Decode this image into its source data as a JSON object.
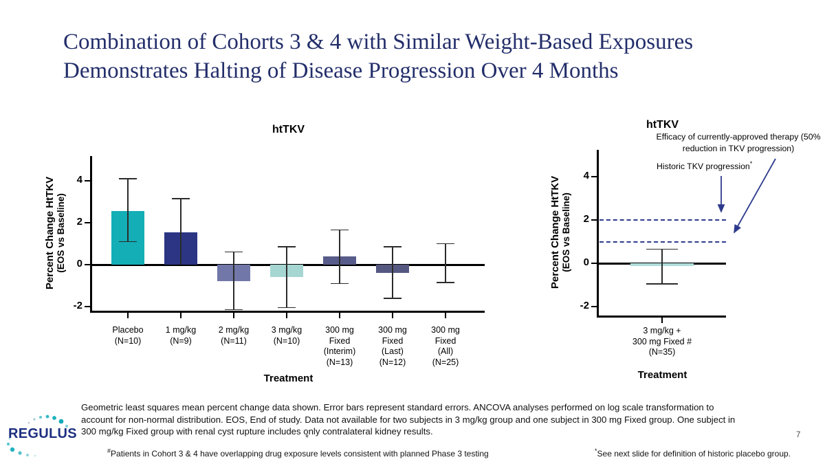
{
  "slide": {
    "title_line1": "Combination of Cohorts 3 & 4 with Similar Weight-Based Exposures",
    "title_line2": "Demonstrates Halting of Disease Progression Over 4 Months",
    "page_number": "7",
    "logo_text": "REGULUS",
    "footnote_main": "Geometric least squares mean percent change data shown. Error bars represent standard errors. ANCOVA analyses performed on log scale transformation to account for non-normal distribution. EOS, End of study. Data not available for two subjects in 3 mg/kg group and one subject in 300 mg Fixed group. One subject in 300 mg/kg Fixed group with renal cyst rupture includes only contralateral kidney results.",
    "stray_asterisk": "*",
    "footnote_hash_sup": "#",
    "footnote_hash": "Patients in Cohort 3 & 4 have overlapping drug exposure levels consistent with planned Phase 3 testing",
    "footnote_star_sup": "*",
    "footnote_star": "See next slide for definition of historic placebo group."
  },
  "colors": {
    "title_navy": "#232e6a",
    "annotation_navy": "#2d3a8c",
    "teal": "#13aeb6",
    "navy_bar": "#2b3583",
    "periwinkle": "#7277a9",
    "light_teal": "#a5d6d2",
    "slate": "#585c8a",
    "slate_dark": "#555880",
    "right_bar_teal": "#afddd9"
  },
  "chart_data": [
    {
      "type": "bar",
      "title": "htTKV",
      "ylabel": "Percent Change HtTKV",
      "ylabel2": "(EOS vs Baseline)",
      "xlabel": "Treatment",
      "categories": [
        "Placebo\n(N=10)",
        "1 mg/kg\n(N=9)",
        "2 mg/kg\n(N=11)",
        "3 mg/kg\n(N=10)",
        "300 mg\nFixed\n(Interim)\n(N=13)",
        "300 mg\nFixed\n(Last)\n(N=12)",
        "300 mg\nFixed\n(All)\n(N=25)"
      ],
      "values": [
        2.55,
        1.55,
        -0.8,
        -0.6,
        0.4,
        -0.4,
        0
      ],
      "err_high": [
        4.1,
        3.15,
        0.6,
        0.85,
        1.65,
        0.85,
        1.0
      ],
      "err_low": [
        1.1,
        0,
        -2.15,
        -2.05,
        -0.9,
        -1.6,
        -0.85
      ],
      "bar_colors": [
        "#13aeb6",
        "#2b3583",
        "#7277a9",
        "#a5d6d2",
        "#585c8a",
        "#555880",
        "#ffffff"
      ],
      "yticks": [
        -2,
        0,
        2,
        4
      ],
      "ylim": [
        -2.3,
        5.2
      ],
      "grid": false,
      "notes": "error bars are standard errors"
    },
    {
      "type": "bar",
      "title": "htTKV",
      "ylabel": "Percent Change HtTKV",
      "ylabel2": "(EOS vs Baseline)",
      "xlabel": "Treatment",
      "categories": [
        "3 mg/kg +\n300 mg Fixed #\n(N=35)"
      ],
      "values": [
        -0.12
      ],
      "err_high": [
        0.65
      ],
      "err_low": [
        -0.95
      ],
      "bar_colors": [
        "#afddd9"
      ],
      "yticks": [
        -2,
        0,
        2,
        4
      ],
      "ylim": [
        -2.5,
        5.2
      ],
      "grid": false,
      "reference_lines": [
        {
          "value": 2,
          "style": "dashed"
        },
        {
          "value": 1,
          "style": "dashed"
        }
      ],
      "annotation_historic": "Historic TKV progression",
      "annotation_historic_sup": "*",
      "annotation_efficacy": "Efficacy of currently-approved therapy (50%\nreduction in TKV progression)"
    }
  ]
}
